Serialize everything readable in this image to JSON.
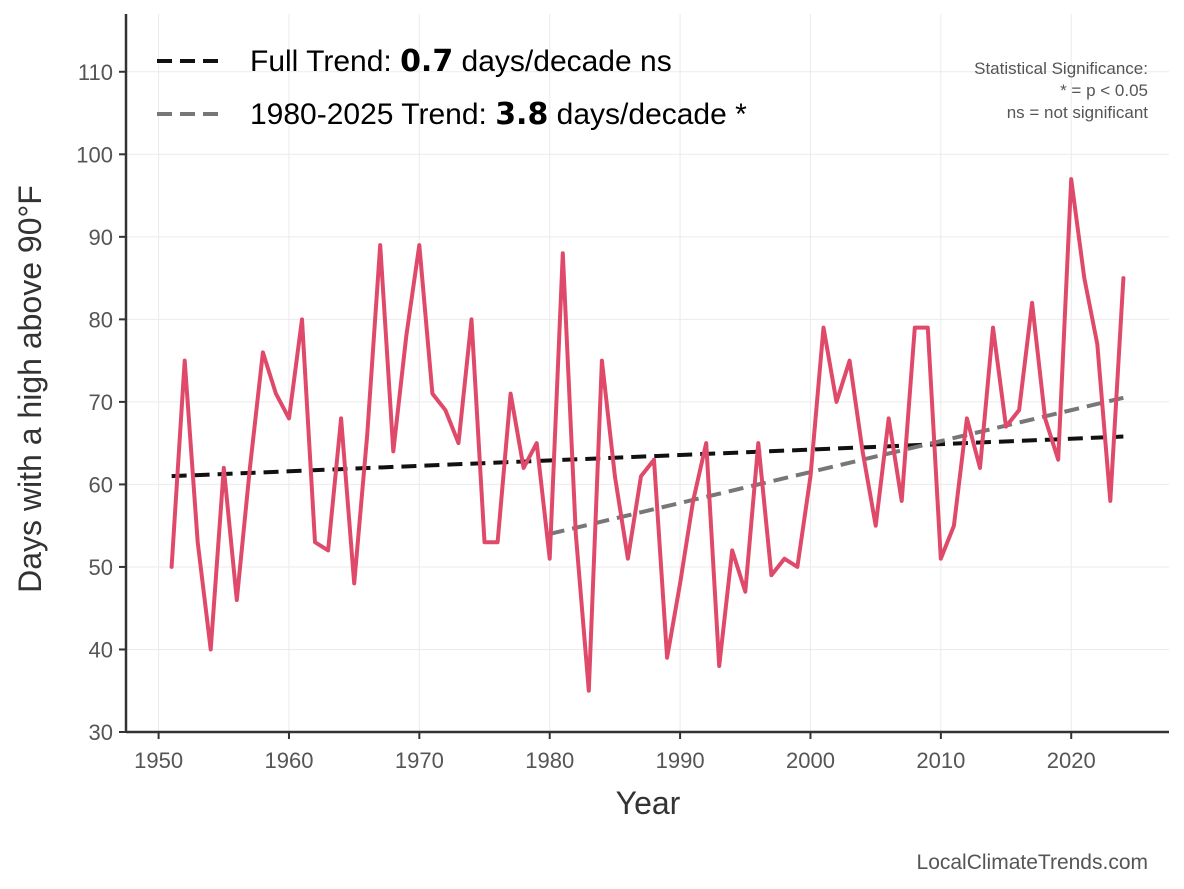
{
  "chart_data": {
    "type": "line",
    "title": "",
    "xlabel": "Year",
    "ylabel": "Days with a high above 90°F",
    "xlim": [
      1947.5,
      2027.5
    ],
    "ylim": [
      30,
      117
    ],
    "xticks": [
      1950,
      1960,
      1970,
      1980,
      1990,
      2000,
      2010,
      2020
    ],
    "yticks": [
      30,
      40,
      50,
      60,
      70,
      80,
      90,
      100,
      110
    ],
    "grid": true,
    "series": [
      {
        "name": "Days above 90°F",
        "color": "#e04a6a",
        "x": [
          1951,
          1952,
          1953,
          1954,
          1955,
          1956,
          1957,
          1958,
          1959,
          1960,
          1961,
          1962,
          1963,
          1964,
          1965,
          1966,
          1967,
          1968,
          1969,
          1970,
          1971,
          1972,
          1973,
          1974,
          1975,
          1976,
          1977,
          1978,
          1979,
          1980,
          1981,
          1982,
          1983,
          1984,
          1985,
          1986,
          1987,
          1988,
          1989,
          1990,
          1991,
          1992,
          1993,
          1994,
          1995,
          1996,
          1997,
          1998,
          1999,
          2000,
          2001,
          2002,
          2003,
          2004,
          2005,
          2006,
          2007,
          2008,
          2009,
          2010,
          2011,
          2012,
          2013,
          2014,
          2015,
          2016,
          2017,
          2018,
          2019,
          2020,
          2021,
          2022,
          2023,
          2024
        ],
        "values": [
          50,
          75,
          53,
          40,
          62,
          46,
          62,
          76,
          71,
          68,
          80,
          53,
          52,
          68,
          48,
          66,
          89,
          64,
          78,
          89,
          71,
          69,
          65,
          80,
          53,
          53,
          71,
          62,
          65,
          51,
          88,
          54,
          35,
          75,
          61,
          51,
          61,
          63,
          39,
          48,
          58,
          65,
          38,
          52,
          47,
          65,
          49,
          51,
          50,
          61,
          79,
          70,
          75,
          64,
          55,
          68,
          58,
          79,
          79,
          51,
          55,
          68,
          62,
          79,
          67,
          69,
          82,
          68,
          63,
          97,
          85,
          77,
          58,
          85
        ]
      }
    ],
    "trends": [
      {
        "name": "Full Trend",
        "color": "#111111",
        "x": [
          1951,
          2024
        ],
        "y": [
          61.0,
          65.8
        ],
        "legend_prefix": "Full Trend: ",
        "legend_value": "0.7",
        "legend_suffix": " days/decade ns"
      },
      {
        "name": "1980-2025 Trend",
        "color": "#777777",
        "x": [
          1980,
          2024
        ],
        "y": [
          54.0,
          70.5
        ],
        "legend_prefix": "1980-2025 Trend: ",
        "legend_value": "3.8",
        "legend_suffix": " days/decade *"
      }
    ],
    "annotations": {
      "significance_title": "Statistical Significance:",
      "significance_line1": "* = p < 0.05",
      "significance_line2": "ns = not significant"
    }
  },
  "watermark": "LocalClimateTrends.com"
}
